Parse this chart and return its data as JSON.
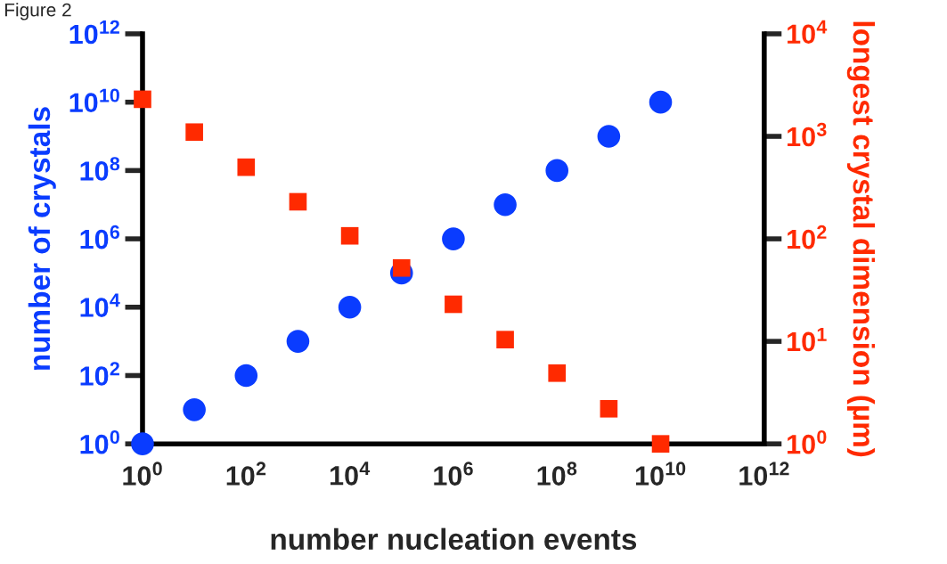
{
  "chart_data": [
    {
      "type": "scatter",
      "xlabel": "number nucleation events",
      "ylabel": "number of crystals",
      "annotations": [
        "Figure 2"
      ],
      "x": [
        1,
        10,
        100,
        1000,
        10000,
        100000,
        1000000,
        10000000,
        100000000,
        1000000000,
        10000000000
      ],
      "series": [
        {
          "color": "#0a3cff",
          "marker": "circle",
          "values": [
            1,
            10,
            100,
            1000,
            10000,
            100000,
            1000000,
            10000000,
            100000000,
            1000000000,
            10000000000
          ]
        }
      ],
      "log": "xy",
      "grid": false,
      "legend": false,
      "xlim": [
        1,
        1000000000000
      ],
      "xticks": [
        {
          "value": 1,
          "label": "10$^{0}$"
        },
        {
          "value": 100,
          "label": "10$^{2}$"
        },
        {
          "value": 10000,
          "label": "10$^{4}$"
        },
        {
          "value": 1000000,
          "label": "10$^{6}$"
        },
        {
          "value": 100000000,
          "label": "10$^{8}$"
        },
        {
          "value": 10000000000,
          "label": "10$^{10}$"
        },
        {
          "value": 1000000000000,
          "label": "10$^{12}$"
        }
      ],
      "ylim": [
        1,
        1000000000000
      ],
      "yticks": [
        {
          "value": 1,
          "label": "10$^{0}$"
        },
        {
          "value": 100,
          "label": "10$^{2}$"
        },
        {
          "value": 10000,
          "label": "10$^{4}$"
        },
        {
          "value": 1000000,
          "label": "10$^{6}$"
        },
        {
          "value": 100000000,
          "label": "10$^{8}$"
        },
        {
          "value": 10000000000,
          "label": "10$^{10}$"
        },
        {
          "value": 1000000000000,
          "label": "10$^{12}$"
        }
      ]
    },
    {
      "type": "scatter",
      "ylabel": "longest crystal dimension (µm)",
      "x": [
        1,
        10,
        100,
        1000,
        10000,
        100000,
        1000000,
        10000000,
        100000000,
        1000000000,
        10000000000
      ],
      "series": [
        {
          "color": "#ff2a00",
          "marker": "square",
          "values": [
            2300,
            1100,
            500,
            230,
            107,
            52,
            23,
            10.4,
            4.9,
            2.2,
            1
          ]
        }
      ],
      "log": "xy",
      "grid": false,
      "legend": false,
      "tick_labels": "y",
      "xlim": [
        1,
        1000000000000
      ],
      "ylim": [
        1,
        10000
      ],
      "yticks": [
        {
          "value": 1,
          "label": "10$^{0}$"
        },
        {
          "value": 10,
          "label": "10$^{1}$"
        },
        {
          "value": 100,
          "label": "10$^{2}$"
        },
        {
          "value": 1000,
          "label": "10$^{3}$"
        },
        {
          "value": 10000,
          "label": "10$^{4}$"
        }
      ]
    }
  ]
}
